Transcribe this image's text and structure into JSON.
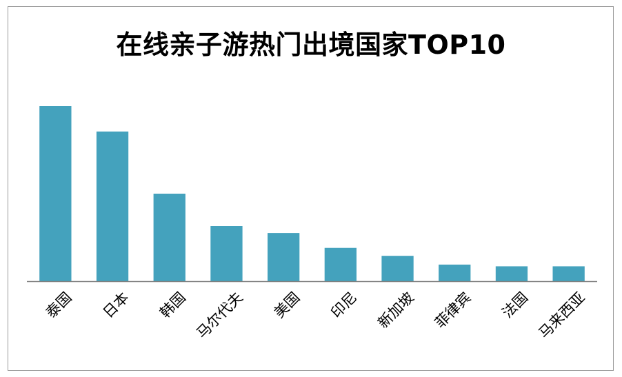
{
  "chart_data": {
    "type": "bar",
    "title": "在线亲子游热门出境国家TOP10",
    "xlabel": "",
    "ylabel": "",
    "categories": [
      "泰国",
      "日本",
      "韩国",
      "马尔代夫",
      "美国",
      "印尼",
      "新加坡",
      "菲律宾",
      "法国",
      "马来西亚"
    ],
    "values": [
      100,
      85.5,
      50,
      31.5,
      27.5,
      19,
      14.5,
      9.5,
      8.5,
      8.5
    ],
    "ylim": [
      0,
      100
    ],
    "grid": false,
    "legend": "none",
    "bar_color": "#44a2bd",
    "axis_color": "#7f7f7f"
  }
}
